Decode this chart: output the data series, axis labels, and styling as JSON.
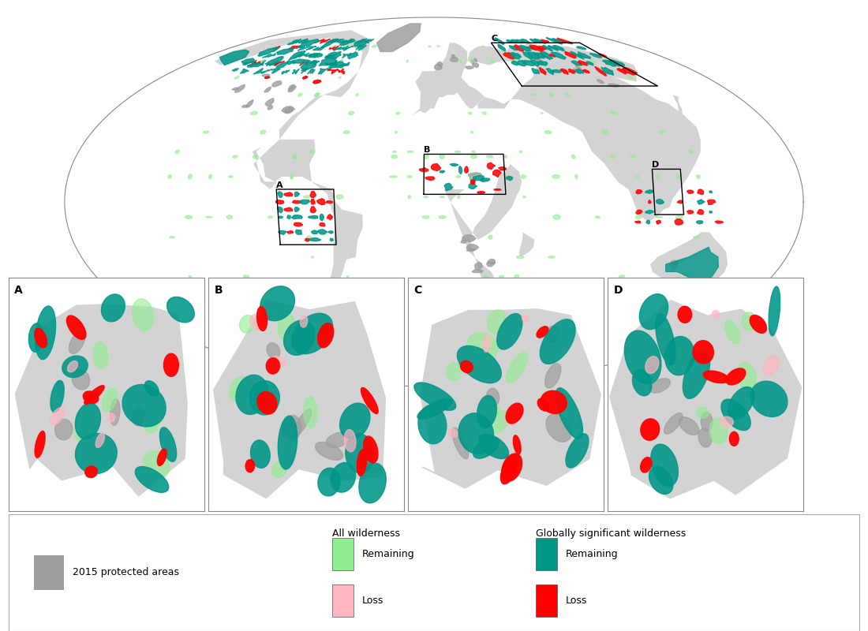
{
  "background_color": "#ffffff",
  "land_color": "#d3d3d3",
  "ocean_color": "#ffffff",
  "border_color": "#aaaaaa",
  "map_outline_color": "#888888",
  "colors": {
    "protected_areas": "#9e9e9e",
    "all_wilderness_remaining": "#90EE90",
    "all_wilderness_loss": "#FFB6C1",
    "gsw_remaining": "#009688",
    "gsw_loss": "#FF0000"
  },
  "figure_width": 11,
  "figure_height": 8,
  "legend": {
    "protected_color": "#9e9e9e",
    "all_remaining_color": "#90EE90",
    "all_loss_color": "#FFB6C1",
    "gsw_remaining_color": "#009688",
    "gsw_loss_color": "#FF0000",
    "protected_label": "2015 protected areas",
    "all_header": "All wilderness",
    "all_remaining_label": "Remaining",
    "all_loss_label": "Loss",
    "gsw_header": "Globally significant wilderness",
    "gsw_remaining_label": "Remaining",
    "gsw_loss_label": "Loss"
  }
}
